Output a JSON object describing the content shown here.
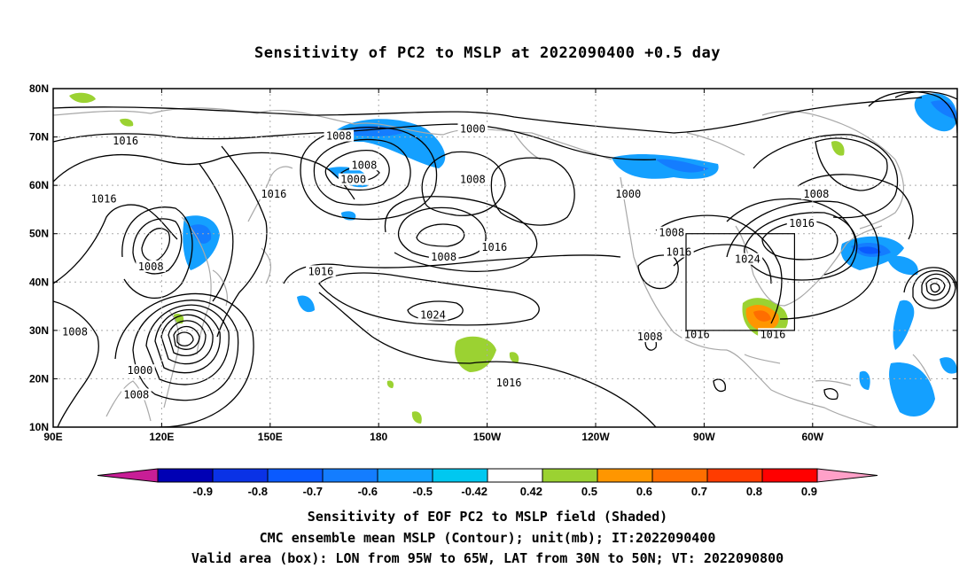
{
  "title": "Sensitivity of PC2 to MSLP at 2022090400 +0.5 day",
  "map": {
    "lat_labels": [
      "80N",
      "70N",
      "60N",
      "50N",
      "40N",
      "30N",
      "20N",
      "10N"
    ],
    "lon_labels": [
      "90E",
      "120E",
      "150E",
      "180",
      "150W",
      "120W",
      "90W",
      "60W"
    ],
    "contour_labels": [
      {
        "text": "1016",
        "lon": 110,
        "lat": 69
      },
      {
        "text": "1008",
        "lon": 169,
        "lat": 70
      },
      {
        "text": "1000",
        "lon": 206,
        "lat": 71.5
      },
      {
        "text": "1008",
        "lon": 176,
        "lat": 64
      },
      {
        "text": "1000",
        "lon": 173,
        "lat": 61
      },
      {
        "text": "1008",
        "lon": 206,
        "lat": 61
      },
      {
        "text": "1016",
        "lon": 104,
        "lat": 57
      },
      {
        "text": "1016",
        "lon": 151,
        "lat": 58
      },
      {
        "text": "1000",
        "lon": 249,
        "lat": 58
      },
      {
        "text": "1016",
        "lon": 212,
        "lat": 47
      },
      {
        "text": "1008",
        "lon": 198,
        "lat": 45
      },
      {
        "text": "1008",
        "lon": 261,
        "lat": 50
      },
      {
        "text": "1016",
        "lon": 263,
        "lat": 46
      },
      {
        "text": "1024",
        "lon": 282,
        "lat": 44.5
      },
      {
        "text": "1016",
        "lon": 297,
        "lat": 52
      },
      {
        "text": "1008",
        "lon": 301,
        "lat": 58
      },
      {
        "text": "1008",
        "lon": 117,
        "lat": 43
      },
      {
        "text": "1016",
        "lon": 164,
        "lat": 42
      },
      {
        "text": "1024",
        "lon": 195,
        "lat": 33
      },
      {
        "text": "1008",
        "lon": 96,
        "lat": 29.5
      },
      {
        "text": "1008",
        "lon": 255,
        "lat": 28.5
      },
      {
        "text": "1016",
        "lon": 268,
        "lat": 29
      },
      {
        "text": "1016",
        "lon": 289,
        "lat": 29
      },
      {
        "text": "1000",
        "lon": 114,
        "lat": 21.5
      },
      {
        "text": "1016",
        "lon": 216,
        "lat": 19
      },
      {
        "text": "1008",
        "lon": 113,
        "lat": 16.5
      }
    ],
    "box": {
      "lon_min": 265,
      "lon_max": 295,
      "lat_min": 30,
      "lat_max": 50
    }
  },
  "colorbar": {
    "labels": [
      "-0.9",
      "-0.8",
      "-0.7",
      "-0.6",
      "-0.5",
      "-0.42",
      "0.42",
      "0.5",
      "0.6",
      "0.7",
      "0.8",
      "0.9"
    ],
    "colors": [
      "#0000b4",
      "#0a32e6",
      "#0a5aff",
      "#147dff",
      "#14a0ff",
      "#00c8f0",
      "#ffffff",
      "#9bd232",
      "#ff9600",
      "#ff6e00",
      "#ff3c00",
      "#ff0000"
    ],
    "under_color": "#c81e96",
    "over_color": "#ffa0c8"
  },
  "caption": {
    "line1": "Sensitivity of EOF PC2 to MSLP field (Shaded)",
    "line2": "CMC ensemble mean MSLP (Contour); unit(mb); IT:2022090400",
    "line3": "Valid area (box): LON from 95W to 65W, LAT from 30N to 50N; VT: 2022090800"
  }
}
